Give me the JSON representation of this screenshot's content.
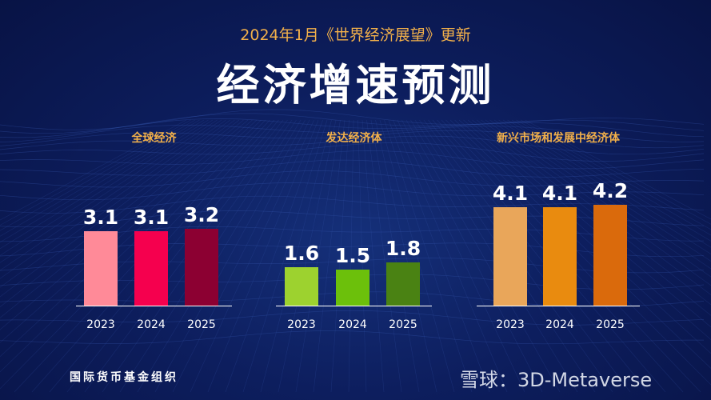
{
  "subtitle": "2024年1月《世界经济展望》更新",
  "title": "经济增速预测",
  "source": "国际货币基金组织",
  "watermark": "雪球：3D-Metaverse",
  "chart_data": [
    {
      "type": "bar",
      "title": "全球经济",
      "categories": [
        "2023",
        "2024",
        "2025"
      ],
      "values": [
        3.1,
        3.1,
        3.2
      ],
      "colors": [
        "#ff8a98",
        "#f5004e",
        "#8c0032"
      ]
    },
    {
      "type": "bar",
      "title": "发达经济体",
      "categories": [
        "2023",
        "2024",
        "2025"
      ],
      "values": [
        1.6,
        1.5,
        1.8
      ],
      "colors": [
        "#9dd22f",
        "#6cc00b",
        "#4a8213"
      ]
    },
    {
      "type": "bar",
      "title": "新兴市场和发展中经济体",
      "categories": [
        "2023",
        "2024",
        "2025"
      ],
      "values": [
        4.1,
        4.1,
        4.2
      ],
      "colors": [
        "#e9a65a",
        "#e98b0f",
        "#da6a0c"
      ]
    }
  ]
}
